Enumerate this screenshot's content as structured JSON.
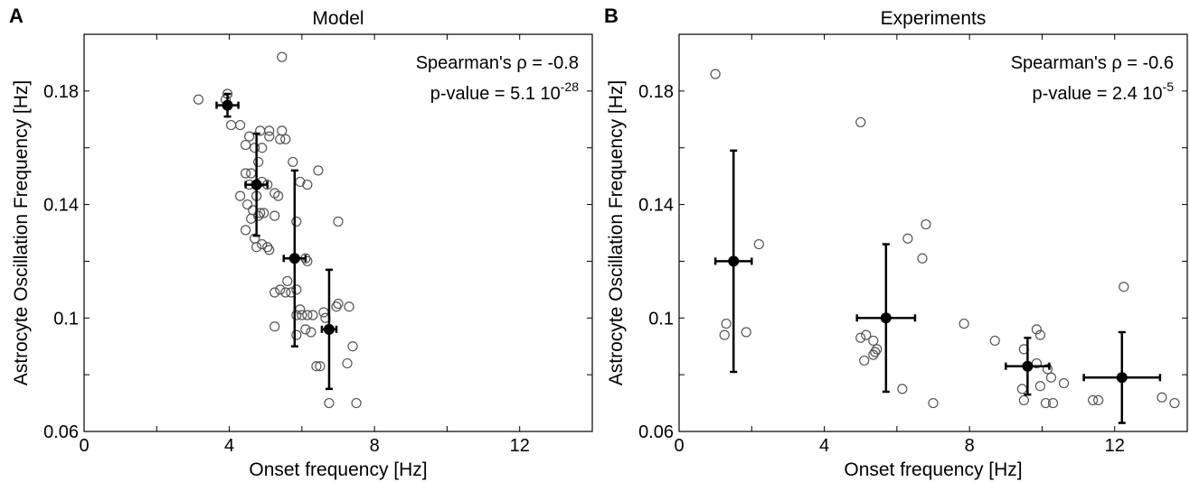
{
  "chart_data": [
    {
      "type": "scatter",
      "panel_label": "A",
      "title": "Model",
      "xlabel": "Onset frequency [Hz]",
      "ylabel": "Astrocyte Oscillation Frequency [Hz]",
      "xlim": [
        0,
        14
      ],
      "ylim": [
        0.06,
        0.2
      ],
      "x_ticks": [
        "0",
        "4",
        "8",
        "12"
      ],
      "y_ticks": [
        "0.06",
        "0.1",
        "0.14",
        "0.18"
      ],
      "grid": false,
      "annotations": {
        "spearman": "Spearman's ρ = -0.8",
        "pvalue_main": "p-value = 5.1 10",
        "pvalue_exp": "-28"
      },
      "points": [
        {
          "x": 3.15,
          "y": 0.177
        },
        {
          "x": 3.95,
          "y": 0.179
        },
        {
          "x": 3.9,
          "y": 0.177
        },
        {
          "x": 4.05,
          "y": 0.168
        },
        {
          "x": 4.3,
          "y": 0.168
        },
        {
          "x": 5.45,
          "y": 0.192
        },
        {
          "x": 4.55,
          "y": 0.164
        },
        {
          "x": 4.85,
          "y": 0.166
        },
        {
          "x": 5.1,
          "y": 0.166
        },
        {
          "x": 5.1,
          "y": 0.164
        },
        {
          "x": 5.45,
          "y": 0.166
        },
        {
          "x": 5.4,
          "y": 0.163
        },
        {
          "x": 5.55,
          "y": 0.163
        },
        {
          "x": 4.45,
          "y": 0.161
        },
        {
          "x": 4.7,
          "y": 0.16
        },
        {
          "x": 4.9,
          "y": 0.16
        },
        {
          "x": 5.75,
          "y": 0.155
        },
        {
          "x": 4.8,
          "y": 0.155
        },
        {
          "x": 4.45,
          "y": 0.151
        },
        {
          "x": 4.6,
          "y": 0.151
        },
        {
          "x": 5.95,
          "y": 0.148
        },
        {
          "x": 6.45,
          "y": 0.152
        },
        {
          "x": 6.15,
          "y": 0.147
        },
        {
          "x": 4.55,
          "y": 0.147
        },
        {
          "x": 4.75,
          "y": 0.147
        },
        {
          "x": 4.9,
          "y": 0.148
        },
        {
          "x": 5.05,
          "y": 0.147
        },
        {
          "x": 5.25,
          "y": 0.144
        },
        {
          "x": 5.35,
          "y": 0.143
        },
        {
          "x": 4.3,
          "y": 0.143
        },
        {
          "x": 4.5,
          "y": 0.14
        },
        {
          "x": 4.75,
          "y": 0.143
        },
        {
          "x": 4.65,
          "y": 0.138
        },
        {
          "x": 4.8,
          "y": 0.136
        },
        {
          "x": 4.95,
          "y": 0.137
        },
        {
          "x": 4.6,
          "y": 0.135
        },
        {
          "x": 4.85,
          "y": 0.137
        },
        {
          "x": 5.25,
          "y": 0.136
        },
        {
          "x": 7.0,
          "y": 0.134
        },
        {
          "x": 5.85,
          "y": 0.134
        },
        {
          "x": 4.45,
          "y": 0.131
        },
        {
          "x": 4.7,
          "y": 0.128
        },
        {
          "x": 4.9,
          "y": 0.126
        },
        {
          "x": 4.75,
          "y": 0.125
        },
        {
          "x": 5.05,
          "y": 0.125
        },
        {
          "x": 5.1,
          "y": 0.124
        },
        {
          "x": 6.1,
          "y": 0.121
        },
        {
          "x": 6.15,
          "y": 0.12
        },
        {
          "x": 5.6,
          "y": 0.113
        },
        {
          "x": 5.85,
          "y": 0.11
        },
        {
          "x": 5.25,
          "y": 0.109
        },
        {
          "x": 5.4,
          "y": 0.11
        },
        {
          "x": 5.55,
          "y": 0.109
        },
        {
          "x": 5.7,
          "y": 0.109
        },
        {
          "x": 7.0,
          "y": 0.105
        },
        {
          "x": 6.95,
          "y": 0.104
        },
        {
          "x": 7.3,
          "y": 0.104
        },
        {
          "x": 5.95,
          "y": 0.103
        },
        {
          "x": 5.85,
          "y": 0.101
        },
        {
          "x": 6.0,
          "y": 0.101
        },
        {
          "x": 6.15,
          "y": 0.101
        },
        {
          "x": 6.3,
          "y": 0.101
        },
        {
          "x": 6.6,
          "y": 0.102
        },
        {
          "x": 6.65,
          "y": 0.1
        },
        {
          "x": 5.25,
          "y": 0.097
        },
        {
          "x": 6.1,
          "y": 0.096
        },
        {
          "x": 6.25,
          "y": 0.095
        },
        {
          "x": 5.85,
          "y": 0.094
        },
        {
          "x": 6.75,
          "y": 0.096
        },
        {
          "x": 7.4,
          "y": 0.09
        },
        {
          "x": 6.4,
          "y": 0.083
        },
        {
          "x": 6.5,
          "y": 0.083
        },
        {
          "x": 7.25,
          "y": 0.084
        },
        {
          "x": 6.75,
          "y": 0.07
        },
        {
          "x": 7.5,
          "y": 0.07
        }
      ],
      "binned_means": [
        {
          "x": 3.95,
          "y": 0.175,
          "xerr": 0.3,
          "yerr": 0.004
        },
        {
          "x": 4.75,
          "y": 0.147,
          "xerr": 0.3,
          "yerr": 0.018
        },
        {
          "x": 5.8,
          "y": 0.121,
          "xerr": 0.3,
          "yerr": 0.031
        },
        {
          "x": 6.75,
          "y": 0.096,
          "xerr": 0.2,
          "yerr": 0.021
        }
      ]
    },
    {
      "type": "scatter",
      "panel_label": "B",
      "title": "Experiments",
      "xlabel": "Onset frequency [Hz]",
      "ylabel": "Astrocyte Oscillation Frequency [Hz]",
      "xlim": [
        0,
        14
      ],
      "ylim": [
        0.06,
        0.2
      ],
      "x_ticks": [
        "0",
        "4",
        "8",
        "12"
      ],
      "y_ticks": [
        "0.06",
        "0.1",
        "0.14",
        "0.18"
      ],
      "grid": false,
      "annotations": {
        "spearman": "Spearman's ρ = -0.6",
        "pvalue_main": "p-value = 2.4 10",
        "pvalue_exp": "-5"
      },
      "points": [
        {
          "x": 1.0,
          "y": 0.186
        },
        {
          "x": 2.2,
          "y": 0.126
        },
        {
          "x": 1.3,
          "y": 0.098
        },
        {
          "x": 1.25,
          "y": 0.094
        },
        {
          "x": 1.85,
          "y": 0.095
        },
        {
          "x": 5.0,
          "y": 0.169
        },
        {
          "x": 6.8,
          "y": 0.133
        },
        {
          "x": 6.7,
          "y": 0.121
        },
        {
          "x": 6.3,
          "y": 0.128
        },
        {
          "x": 7.85,
          "y": 0.098
        },
        {
          "x": 5.0,
          "y": 0.093
        },
        {
          "x": 5.15,
          "y": 0.094
        },
        {
          "x": 5.35,
          "y": 0.092
        },
        {
          "x": 5.45,
          "y": 0.089
        },
        {
          "x": 5.4,
          "y": 0.088
        },
        {
          "x": 5.35,
          "y": 0.087
        },
        {
          "x": 5.1,
          "y": 0.085
        },
        {
          "x": 6.15,
          "y": 0.075
        },
        {
          "x": 7.0,
          "y": 0.07
        },
        {
          "x": 8.7,
          "y": 0.092
        },
        {
          "x": 9.5,
          "y": 0.089
        },
        {
          "x": 9.85,
          "y": 0.096
        },
        {
          "x": 9.95,
          "y": 0.094
        },
        {
          "x": 9.85,
          "y": 0.084
        },
        {
          "x": 10.15,
          "y": 0.082
        },
        {
          "x": 10.25,
          "y": 0.079
        },
        {
          "x": 9.95,
          "y": 0.076
        },
        {
          "x": 9.45,
          "y": 0.075
        },
        {
          "x": 9.5,
          "y": 0.071
        },
        {
          "x": 10.1,
          "y": 0.07
        },
        {
          "x": 10.3,
          "y": 0.07
        },
        {
          "x": 10.6,
          "y": 0.077
        },
        {
          "x": 12.25,
          "y": 0.111
        },
        {
          "x": 11.4,
          "y": 0.071
        },
        {
          "x": 11.55,
          "y": 0.071
        },
        {
          "x": 13.3,
          "y": 0.072
        },
        {
          "x": 13.65,
          "y": 0.07
        }
      ],
      "binned_means": [
        {
          "x": 1.5,
          "y": 0.12,
          "xerr": 0.5,
          "yerr": 0.039
        },
        {
          "x": 5.7,
          "y": 0.1,
          "xerr": 0.8,
          "yerr": 0.026
        },
        {
          "x": 9.6,
          "y": 0.083,
          "xerr": 0.6,
          "yerr": 0.01
        },
        {
          "x": 12.2,
          "y": 0.079,
          "xerr": 1.05,
          "yerr": 0.016
        }
      ]
    }
  ]
}
